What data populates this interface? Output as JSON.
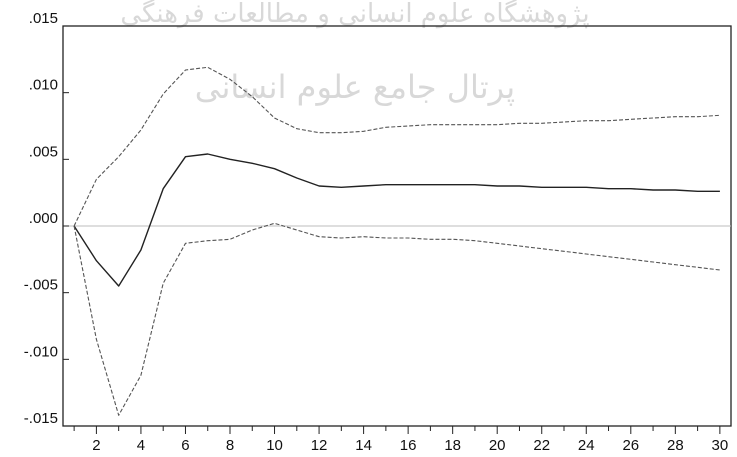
{
  "watermark": {
    "line1": "پژوهشگاه علوم انسانی و مطالعات فرهنگی",
    "line2": "پرتال جامع علوم انسانی"
  },
  "chart_data": {
    "type": "line",
    "title": "",
    "xlabel": "",
    "ylabel": "",
    "xlim": [
      1,
      30
    ],
    "ylim": [
      -0.015,
      0.015
    ],
    "x_ticks": [
      2,
      4,
      6,
      8,
      10,
      12,
      14,
      16,
      18,
      20,
      22,
      24,
      26,
      28,
      30
    ],
    "x_tick_labels": [
      "2",
      "4",
      "6",
      "8",
      "10",
      "12",
      "14",
      "16",
      "18",
      "20",
      "22",
      "24",
      "26",
      "28",
      "30"
    ],
    "y_ticks": [
      0.015,
      0.01,
      0.005,
      0.0,
      -0.005,
      -0.01,
      -0.015
    ],
    "y_tick_labels": [
      ".015",
      ".010",
      ".005",
      ".000",
      "-.005",
      "-.010",
      "-.015"
    ],
    "zero_line": true,
    "x": [
      1,
      2,
      3,
      4,
      5,
      6,
      7,
      8,
      9,
      10,
      11,
      12,
      13,
      14,
      15,
      16,
      17,
      18,
      19,
      20,
      21,
      22,
      23,
      24,
      25,
      26,
      27,
      28,
      29,
      30
    ],
    "series": [
      {
        "style": "solid",
        "color": "#222222",
        "values": [
          0.0,
          -0.0026,
          -0.0045,
          -0.0018,
          0.0028,
          0.0052,
          0.0054,
          0.005,
          0.0047,
          0.0043,
          0.0036,
          0.003,
          0.0029,
          0.003,
          0.0031,
          0.0031,
          0.0031,
          0.0031,
          0.0031,
          0.003,
          0.003,
          0.0029,
          0.0029,
          0.0029,
          0.0028,
          0.0028,
          0.0027,
          0.0027,
          0.0026,
          0.0026
        ]
      },
      {
        "style": "dashed",
        "color": "#555555",
        "values": [
          0.0,
          0.0035,
          0.0052,
          0.0072,
          0.0099,
          0.0117,
          0.0119,
          0.011,
          0.0097,
          0.0081,
          0.0073,
          0.007,
          0.007,
          0.0071,
          0.0074,
          0.0075,
          0.0076,
          0.0076,
          0.0076,
          0.0076,
          0.0077,
          0.0077,
          0.0078,
          0.0079,
          0.0079,
          0.008,
          0.0081,
          0.0082,
          0.0082,
          0.0083
        ]
      },
      {
        "style": "dashed",
        "color": "#555555",
        "values": [
          0.0,
          -0.0085,
          -0.0142,
          -0.0112,
          -0.0043,
          -0.0013,
          -0.0011,
          -0.001,
          -0.0003,
          0.0002,
          -0.0003,
          -0.0008,
          -0.0009,
          -0.0008,
          -0.0009,
          -0.0009,
          -0.001,
          -0.001,
          -0.0011,
          -0.0013,
          -0.0015,
          -0.0017,
          -0.0019,
          -0.0021,
          -0.0023,
          -0.0025,
          -0.0027,
          -0.0029,
          -0.0031,
          -0.0033
        ]
      }
    ]
  }
}
